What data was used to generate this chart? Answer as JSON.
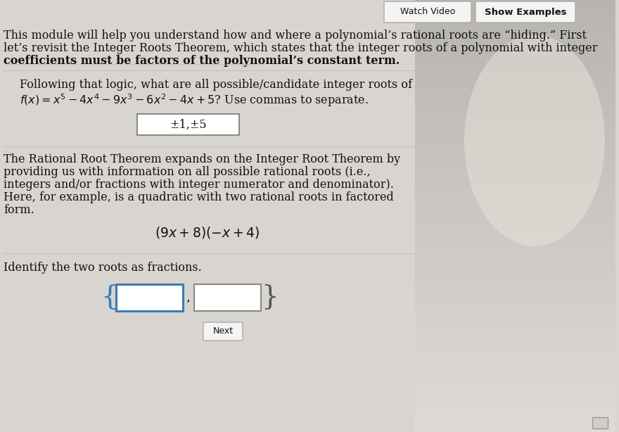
{
  "bg_color": "#d8d5d0",
  "content_bg": "#f2f0ed",
  "show_examples_text": "Show Examples",
  "watch_video_text": "Watch Video",
  "intro_text_line1": "This module will help you understand how and where a polynomial’s rational roots are “hiding.” First",
  "intro_text_line2": "let’s revisit the Integer Roots Theorem, which states that the integer roots of a polynomial with integer",
  "intro_text_line3": "coefficients must be factors of the polynomial’s constant term.",
  "q1_line1": "Following that logic, what are all possible/candidate integer roots of",
  "q1_line2_plain": "f(x) = x⁵ − 4x⁴ − 9x³ − 6x² − 4x + 5? Use commas to separate.",
  "answer1": "±1,±5",
  "para2_line1": "The Rational Root Theorem expands on the Integer Root Theorem by",
  "para2_line2": "providing us with information on all possible rational roots (i.e.,",
  "para2_line3": "integers and/or fractions with integer numerator and denominator).",
  "para2_line4": "Here, for example, is a quadratic with two rational roots in factored",
  "para2_line5": "form.",
  "formula": "(9x + 8)(−x + 4)",
  "q3_text": "Identify the two roots as fractions.",
  "next_text": "Next",
  "text_color": "#111111",
  "box_bg": "#ffffff",
  "answer_box_border": "#777777",
  "input_box_border_left": "#3a7ab8",
  "input_box_border_right": "#888888",
  "brace_color_left": "#3a7ab8",
  "brace_color_right": "#555555",
  "btn_bg": "#f5f4f2",
  "btn_border": "#aaaaaa",
  "separator_color": "#bbbbbb",
  "font_size": 11.5
}
